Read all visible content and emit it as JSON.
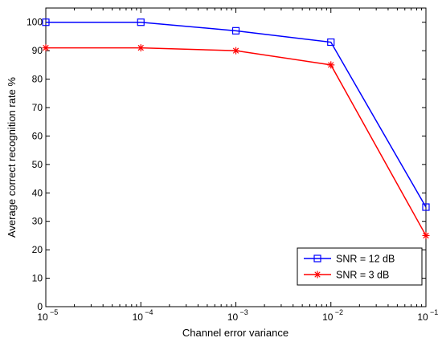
{
  "chart_data": {
    "type": "line",
    "x_scale": "log",
    "x": [
      1e-05,
      0.0001,
      0.001,
      0.01,
      0.1
    ],
    "xlim": [
      1e-05,
      0.1
    ],
    "ylim": [
      0,
      105
    ],
    "xticks": [
      {
        "base": "10",
        "exp": "−5"
      },
      {
        "base": "10",
        "exp": "−4"
      },
      {
        "base": "10",
        "exp": "−3"
      },
      {
        "base": "10",
        "exp": "−2"
      },
      {
        "base": "10",
        "exp": "−1"
      }
    ],
    "yticks": [
      0,
      10,
      20,
      30,
      40,
      50,
      60,
      70,
      80,
      90,
      100
    ],
    "xlabel": "Channel error variance",
    "ylabel": "Average correct recognition rate %",
    "legend_position": "bottom-right",
    "grid": false,
    "series": [
      {
        "name": "SNR = 12 dB",
        "color": "#0000ff",
        "marker": "square",
        "values": [
          100,
          100,
          97,
          93,
          35
        ]
      },
      {
        "name": "SNR = 3 dB",
        "color": "#ff0000",
        "marker": "asterisk",
        "values": [
          91,
          91,
          90,
          85,
          25
        ]
      }
    ]
  }
}
